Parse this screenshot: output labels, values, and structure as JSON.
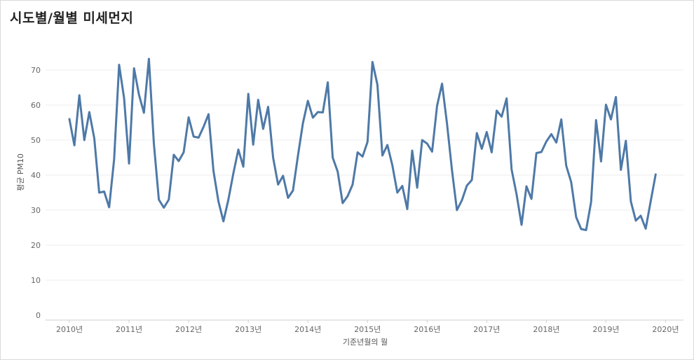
{
  "title": "시도별/월별 미세먼지",
  "chart_data": {
    "type": "line",
    "xlabel": "기준년월의 월",
    "ylabel": "평균 PM10",
    "ylim": [
      0,
      75
    ],
    "xlim": [
      2009.6,
      2020.3
    ],
    "yticks": [
      0,
      10,
      20,
      30,
      40,
      50,
      60,
      70
    ],
    "xticks": [
      {
        "value": 2010,
        "label": "2010년"
      },
      {
        "value": 2011,
        "label": "2011년"
      },
      {
        "value": 2012,
        "label": "2012년"
      },
      {
        "value": 2013,
        "label": "2013년"
      },
      {
        "value": 2014,
        "label": "2014년"
      },
      {
        "value": 2015,
        "label": "2015년"
      },
      {
        "value": 2016,
        "label": "2016년"
      },
      {
        "value": 2017,
        "label": "2017년"
      },
      {
        "value": 2018,
        "label": "2018년"
      },
      {
        "value": 2019,
        "label": "2019년"
      },
      {
        "value": 2020,
        "label": "2020년"
      }
    ],
    "grid": true,
    "color": "#4e79a7",
    "series": [
      {
        "values": [
          56.0,
          48.5,
          62.8,
          50.0,
          58.0,
          50.5,
          35.0,
          35.3,
          30.8,
          44.5,
          71.5,
          62.0,
          43.3,
          70.5,
          63.0,
          57.8,
          73.2,
          49.0,
          33.0,
          30.7,
          33.0,
          45.8,
          44.0,
          46.5,
          56.5,
          51.0,
          50.7,
          53.8,
          57.4,
          41.2,
          32.5,
          26.8,
          33.0,
          40.5,
          47.3,
          42.4,
          63.2,
          48.7,
          61.5,
          53.2,
          59.5,
          45.0,
          37.3,
          39.8,
          33.5,
          35.6,
          45.5,
          54.8,
          61.2,
          56.4,
          58.0,
          57.9,
          66.5,
          45.0,
          41.0,
          32.0,
          34.0,
          37.3,
          46.5,
          45.3,
          49.5,
          72.3,
          65.8,
          45.6,
          48.6,
          42.8,
          35.0,
          36.9,
          30.3,
          47.0,
          36.4,
          50.0,
          49.0,
          46.7,
          59.8,
          66.1,
          54.8,
          41.5,
          30.0,
          32.8,
          37.0,
          38.6,
          52.0,
          47.5,
          52.3,
          46.5,
          58.4,
          56.7,
          61.9,
          41.6,
          34.5,
          25.8,
          36.8,
          33.2,
          46.3,
          46.6,
          49.6,
          51.7,
          49.3,
          55.9,
          42.7,
          38.0,
          28.0,
          24.6,
          24.3,
          32.3,
          55.7,
          43.9,
          60.1,
          55.9,
          62.3,
          41.5,
          49.8,
          32.5,
          27.0,
          28.4,
          24.7,
          32.5,
          40.2
        ]
      }
    ]
  }
}
